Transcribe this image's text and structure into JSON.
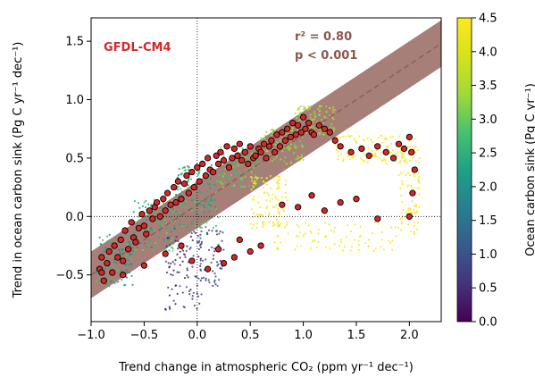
{
  "chart_data": {
    "type": "scatter",
    "model_label": "GFDL-CM4",
    "model_label_color": "#d62728",
    "stats": {
      "r2_text": "r² = 0.80",
      "p_text": "p < 0.001",
      "color": "#8c564b"
    },
    "xlabel": "Trend change in atmospheric CO₂ (ppm yr⁻¹ dec⁻¹)",
    "ylabel": "Trend in ocean carbon sink (Pg C yr⁻¹ dec⁻¹)",
    "xlim": [
      -1.0,
      2.3
    ],
    "ylim": [
      -0.9,
      1.7
    ],
    "x_ticks": [
      -1.0,
      -0.5,
      0.0,
      0.5,
      1.0,
      1.5,
      2.0
    ],
    "x_tick_labels": [
      "−1.0",
      "−0.5",
      "0.0",
      "0.5",
      "1.0",
      "1.5",
      "2.0"
    ],
    "y_ticks": [
      -0.5,
      0.0,
      0.5,
      1.0,
      1.5
    ],
    "y_tick_labels": [
      "−0.5",
      "0.0",
      "0.5",
      "1.0",
      "1.5"
    ],
    "reference_lines": {
      "x": 0.0,
      "y": 0.0
    },
    "regression": {
      "slope": 0.6,
      "intercept": 0.1,
      "band_halfwidth": 0.2,
      "line_color": "#8c564b",
      "band_color": "#a67f78"
    },
    "colorbar": {
      "label": "Ocean carbon sink (Pg C yr⁻¹)",
      "min": 0.0,
      "max": 4.5,
      "ticks": [
        0.0,
        0.5,
        1.0,
        1.5,
        2.0,
        2.5,
        3.0,
        3.5,
        4.0,
        4.5
      ],
      "tick_labels": [
        "0.0",
        "0.5",
        "1.0",
        "1.5",
        "2.0",
        "2.5",
        "3.0",
        "3.5",
        "4.0",
        "4.5"
      ],
      "colormap": "viridis"
    },
    "background_clusters": [
      {
        "x": [
          -0.95,
          -0.6
        ],
        "y": [
          -0.6,
          -0.15
        ],
        "c": [
          1.5,
          3.0
        ],
        "n": 110
      },
      {
        "x": [
          -0.6,
          -0.2
        ],
        "y": [
          -0.3,
          0.15
        ],
        "c": [
          1.8,
          3.2
        ],
        "n": 120
      },
      {
        "x": [
          -0.3,
          0.05
        ],
        "y": [
          -0.8,
          -0.1
        ],
        "c": [
          0.2,
          1.0
        ],
        "n": 90
      },
      {
        "x": [
          -0.2,
          0.2
        ],
        "y": [
          -0.1,
          0.45
        ],
        "c": [
          2.0,
          3.0
        ],
        "n": 160
      },
      {
        "x": [
          0.0,
          0.25
        ],
        "y": [
          -0.6,
          -0.1
        ],
        "c": [
          0.6,
          1.2
        ],
        "n": 70
      },
      {
        "x": [
          0.2,
          0.6
        ],
        "y": [
          0.25,
          0.6
        ],
        "c": [
          2.6,
          3.4
        ],
        "n": 120
      },
      {
        "x": [
          0.5,
          0.85
        ],
        "y": [
          -0.1,
          0.35
        ],
        "c": [
          4.2,
          4.5
        ],
        "n": 110
      },
      {
        "x": [
          0.6,
          1.0
        ],
        "y": [
          0.45,
          0.75
        ],
        "c": [
          3.0,
          3.6
        ],
        "n": 110
      },
      {
        "x": [
          0.9,
          1.3
        ],
        "y": [
          0.7,
          0.95
        ],
        "c": [
          3.2,
          3.8
        ],
        "n": 90
      },
      {
        "x": [
          1.3,
          2.1
        ],
        "y": [
          0.45,
          0.7
        ],
        "c": [
          4.3,
          4.5
        ],
        "n": 120
      },
      {
        "x": [
          1.9,
          2.1
        ],
        "y": [
          -0.15,
          0.6
        ],
        "c": [
          4.3,
          4.5
        ],
        "n": 80
      },
      {
        "x": [
          0.7,
          1.9
        ],
        "y": [
          -0.3,
          -0.05
        ],
        "c": [
          4.3,
          4.5
        ],
        "n": 80
      }
    ],
    "highlighted_points": {
      "name": "GFDL-CM4",
      "color": "#d62728",
      "x": [
        -0.92,
        -0.9,
        -0.88,
        -0.85,
        -0.83,
        -0.8,
        -0.78,
        -0.75,
        -0.72,
        -0.7,
        -0.68,
        -0.65,
        -0.62,
        -0.6,
        -0.58,
        -0.55,
        -0.52,
        -0.5,
        -0.48,
        -0.45,
        -0.42,
        -0.4,
        -0.38,
        -0.35,
        -0.32,
        -0.3,
        -0.28,
        -0.25,
        -0.22,
        -0.2,
        -0.18,
        -0.15,
        -0.12,
        -0.1,
        -0.08,
        -0.05,
        -0.03,
        0.0,
        0.02,
        0.05,
        0.08,
        0.1,
        0.12,
        0.15,
        0.18,
        0.2,
        0.22,
        0.25,
        0.28,
        0.3,
        0.33,
        0.35,
        0.38,
        0.4,
        0.42,
        0.45,
        0.48,
        0.5,
        0.53,
        0.55,
        0.58,
        0.6,
        0.63,
        0.65,
        0.68,
        0.7,
        0.73,
        0.75,
        0.78,
        0.8,
        0.83,
        0.85,
        0.88,
        0.9,
        0.93,
        0.95,
        0.98,
        1.0,
        1.02,
        1.05,
        1.08,
        1.1,
        1.15,
        1.2,
        1.25,
        1.3,
        1.35,
        1.45,
        1.55,
        1.62,
        1.7,
        1.78,
        1.85,
        1.9,
        1.95,
        2.0,
        2.02,
        2.05,
        2.03,
        2.0,
        1.7,
        1.5,
        1.35,
        1.2,
        1.08,
        0.95,
        0.8,
        0.6,
        0.5,
        0.4,
        0.35,
        0.25,
        0.2,
        0.1,
        -0.05,
        -0.15,
        -0.3,
        -0.5,
        -0.7,
        -0.9
      ],
      "y": [
        -0.45,
        -0.35,
        -0.55,
        -0.4,
        -0.3,
        -0.48,
        -0.25,
        -0.35,
        -0.2,
        -0.38,
        -0.12,
        -0.28,
        -0.05,
        -0.18,
        -0.22,
        -0.1,
        0.02,
        -0.08,
        -0.15,
        0.05,
        -0.02,
        0.08,
        0.12,
        0.0,
        0.15,
        0.05,
        0.2,
        0.1,
        0.25,
        0.12,
        0.3,
        0.15,
        0.28,
        0.35,
        0.2,
        0.38,
        0.25,
        0.42,
        0.3,
        0.45,
        0.35,
        0.5,
        0.4,
        0.38,
        0.52,
        0.45,
        0.55,
        0.48,
        0.6,
        0.42,
        0.5,
        0.58,
        0.52,
        0.62,
        0.48,
        0.55,
        0.45,
        0.6,
        0.5,
        0.52,
        0.58,
        0.55,
        0.62,
        0.5,
        0.6,
        0.65,
        0.55,
        0.7,
        0.6,
        0.72,
        0.65,
        0.75,
        0.68,
        0.8,
        0.7,
        0.78,
        0.72,
        0.85,
        0.75,
        0.8,
        0.72,
        0.7,
        0.78,
        0.75,
        0.72,
        0.65,
        0.6,
        0.55,
        0.58,
        0.52,
        0.6,
        0.55,
        0.5,
        0.62,
        0.58,
        0.68,
        0.55,
        0.4,
        0.2,
        0.0,
        -0.02,
        0.15,
        0.12,
        0.05,
        0.18,
        0.08,
        0.1,
        -0.25,
        -0.3,
        -0.2,
        -0.35,
        -0.4,
        -0.28,
        -0.45,
        -0.38,
        -0.25,
        -0.32,
        -0.42,
        -0.5,
        -0.48
      ]
    }
  }
}
